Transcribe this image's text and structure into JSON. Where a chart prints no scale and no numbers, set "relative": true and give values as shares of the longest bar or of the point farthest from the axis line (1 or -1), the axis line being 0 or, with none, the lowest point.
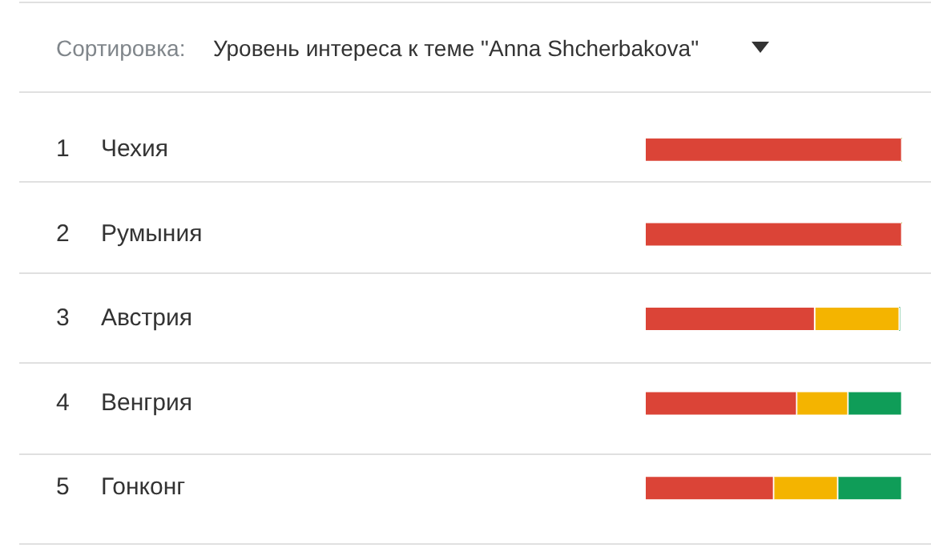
{
  "chart_data": {
    "type": "bar",
    "orientation": "horizontal",
    "stacked": true,
    "relative": true,
    "title": "Уровень интереса к теме \"Anna Shcherbakova\"",
    "subtitle": "Сортировка:",
    "categories": [
      "Чехия",
      "Румыния",
      "Австрия",
      "Венгрия",
      "Гонконг"
    ],
    "series": [
      {
        "color": "#db4437",
        "values": [
          1,
          1,
          0.66,
          0.59,
          0.5
        ]
      },
      {
        "color": "#f4b400",
        "values": [
          0,
          0,
          0.33,
          0.2,
          0.25
        ]
      },
      {
        "color": "#0f9d58",
        "values": [
          0,
          0,
          0,
          0.21,
          0.25
        ]
      }
    ],
    "annotations": [
      "1",
      "2",
      "3",
      "4",
      "5"
    ]
  }
}
